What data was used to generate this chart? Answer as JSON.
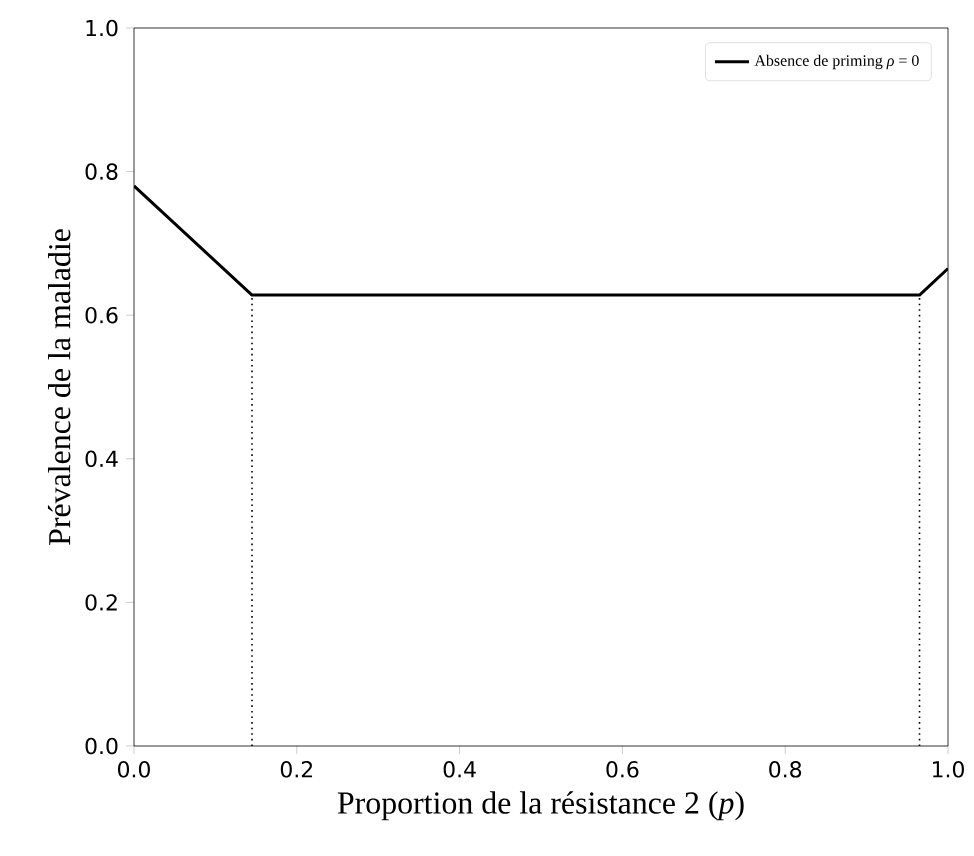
{
  "chart_data": {
    "type": "line",
    "xlabel": "Proportion de la résistance 2 (*p*)",
    "ylabel": "Prévalence de la maladie",
    "xlim": [
      0,
      1
    ],
    "ylim": [
      0,
      1
    ],
    "xticks": [
      {
        "value": 0,
        "label": "0.0"
      },
      0.2,
      0.4,
      0.6,
      0.8,
      {
        "value": 1,
        "label": "1.0"
      }
    ],
    "yticks": [
      {
        "value": 0,
        "label": "0.0"
      },
      0.2,
      0.4,
      0.6,
      0.8,
      {
        "value": 1,
        "label": "1.0"
      }
    ],
    "legend": "top right",
    "grid": false,
    "marker": "none",
    "series": [
      {
        "name": "Absence de priming *ρ* = 0",
        "color": "#000000",
        "x": [
          0,
          0.145,
          0.965,
          1
        ],
        "values": [
          0.78,
          0.628,
          0.628,
          0.665
        ],
        "line_style": "solid"
      },
      {
        "color": "#000000",
        "x": [
          0.145,
          0.145
        ],
        "values": [
          0,
          0.628
        ],
        "line_style": "dotted"
      },
      {
        "color": "#000000",
        "x": [
          0.965,
          0.965
        ],
        "values": [
          0,
          0.628
        ],
        "line_style": "dotted"
      }
    ]
  }
}
